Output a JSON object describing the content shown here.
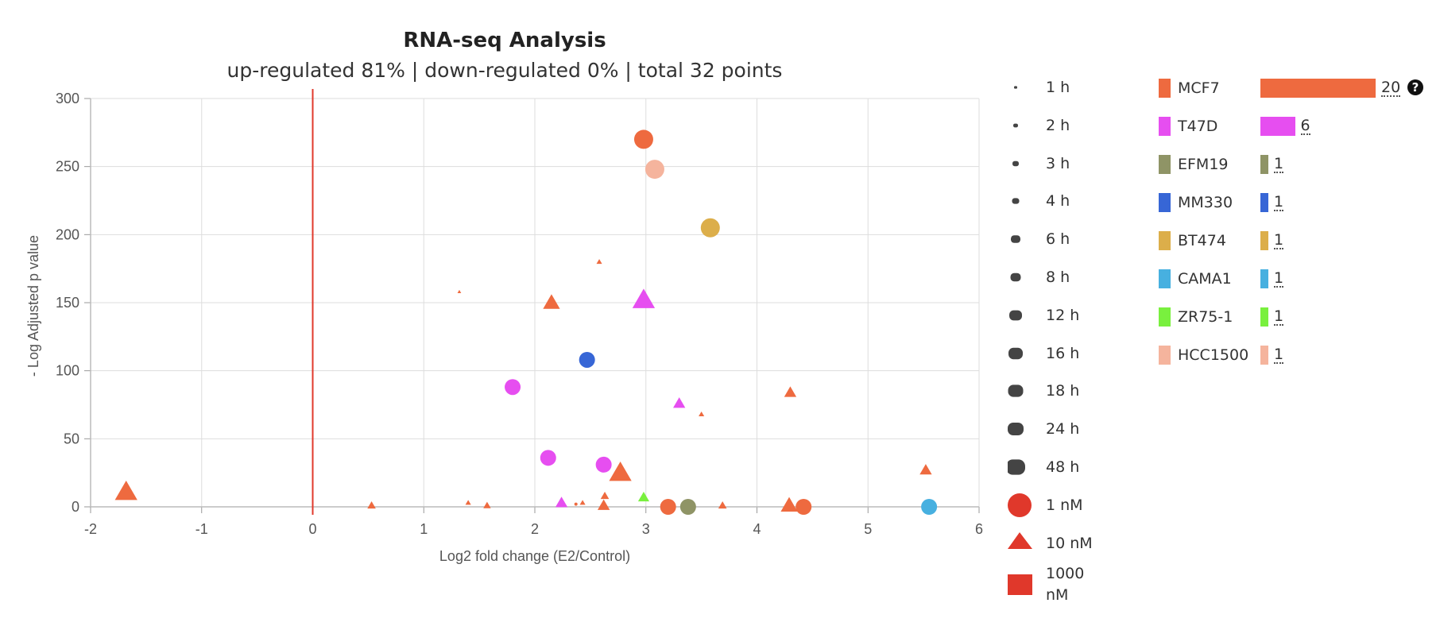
{
  "chart_data": {
    "type": "scatter",
    "title": "RNA-seq Analysis",
    "subtitle": "up-regulated 81% | down-regulated 0% | total 32 points",
    "xlabel": "Log2 fold change (E2/Control)",
    "ylabel": "- Log Adjusted p value",
    "xlim": [
      -2,
      6
    ],
    "ylim": [
      0,
      300
    ],
    "xticks": [
      -2,
      -1,
      0,
      1,
      2,
      3,
      4,
      5,
      6
    ],
    "yticks": [
      0,
      50,
      100,
      150,
      200,
      250,
      300
    ],
    "grid": true,
    "reference_line": {
      "x": 0,
      "color": "#e0382b"
    },
    "colors": {
      "MCF7": "#ee6a3f",
      "T47D": "#e64ef0",
      "EFM19": "#8f9466",
      "MM330": "#3766d6",
      "BT474": "#dcae4a",
      "CAMA1": "#47b0e0",
      "ZR75-1": "#79f03e",
      "HCC1500": "#f5b49d"
    },
    "points": [
      {
        "x": 2.98,
        "y": 270,
        "cell": "MCF7",
        "dose": "1 nM",
        "time": "48 h"
      },
      {
        "x": 3.08,
        "y": 248,
        "cell": "HCC1500",
        "dose": "1 nM",
        "time": "48 h"
      },
      {
        "x": 3.58,
        "y": 205,
        "cell": "BT474",
        "dose": "1 nM",
        "time": "48 h"
      },
      {
        "x": 2.58,
        "y": 180,
        "cell": "MCF7",
        "dose": "10 nM",
        "time": "2 h"
      },
      {
        "x": 1.32,
        "y": 158,
        "cell": "MCF7",
        "dose": "10 nM",
        "time": "1 h"
      },
      {
        "x": 2.15,
        "y": 150,
        "cell": "MCF7",
        "dose": "10 nM",
        "time": "16 h"
      },
      {
        "x": 2.98,
        "y": 152,
        "cell": "T47D",
        "dose": "10 nM",
        "time": "48 h"
      },
      {
        "x": 2.47,
        "y": 108,
        "cell": "MM330",
        "dose": "1 nM",
        "time": "24 h"
      },
      {
        "x": 1.8,
        "y": 88,
        "cell": "T47D",
        "dose": "1 nM",
        "time": "24 h"
      },
      {
        "x": 4.3,
        "y": 84,
        "cell": "MCF7",
        "dose": "10 nM",
        "time": "8 h"
      },
      {
        "x": 3.3,
        "y": 76,
        "cell": "T47D",
        "dose": "10 nM",
        "time": "8 h"
      },
      {
        "x": 3.5,
        "y": 68,
        "cell": "MCF7",
        "dose": "10 nM",
        "time": "2 h"
      },
      {
        "x": 2.12,
        "y": 36,
        "cell": "T47D",
        "dose": "1 nM",
        "time": "24 h"
      },
      {
        "x": 2.62,
        "y": 31,
        "cell": "T47D",
        "dose": "1 nM",
        "time": "24 h"
      },
      {
        "x": 2.77,
        "y": 25,
        "cell": "MCF7",
        "dose": "10 nM",
        "time": "48 h"
      },
      {
        "x": 5.52,
        "y": 27,
        "cell": "MCF7",
        "dose": "10 nM",
        "time": "8 h"
      },
      {
        "x": -1.68,
        "y": 11,
        "cell": "MCF7",
        "dose": "10 nM",
        "time": "48 h"
      },
      {
        "x": 2.98,
        "y": 7,
        "cell": "ZR75-1",
        "dose": "10 nM",
        "time": "6 h"
      },
      {
        "x": 2.63,
        "y": 8,
        "cell": "MCF7",
        "dose": "10 nM",
        "time": "4 h"
      },
      {
        "x": 0.53,
        "y": 1,
        "cell": "MCF7",
        "dose": "10 nM",
        "time": "4 h"
      },
      {
        "x": 1.4,
        "y": 3,
        "cell": "MCF7",
        "dose": "10 nM",
        "time": "2 h"
      },
      {
        "x": 1.57,
        "y": 1,
        "cell": "MCF7",
        "dose": "10 nM",
        "time": "3 h"
      },
      {
        "x": 2.24,
        "y": 3,
        "cell": "T47D",
        "dose": "10 nM",
        "time": "8 h"
      },
      {
        "x": 2.37,
        "y": 2,
        "cell": "MCF7",
        "dose": "1 nM",
        "time": "1 h"
      },
      {
        "x": 2.43,
        "y": 3,
        "cell": "MCF7",
        "dose": "10 nM",
        "time": "2 h"
      },
      {
        "x": 2.62,
        "y": 1,
        "cell": "MCF7",
        "dose": "10 nM",
        "time": "8 h"
      },
      {
        "x": 3.2,
        "y": 0,
        "cell": "MCF7",
        "dose": "1 nM",
        "time": "24 h"
      },
      {
        "x": 3.38,
        "y": 0,
        "cell": "EFM19",
        "dose": "1 nM",
        "time": "24 h"
      },
      {
        "x": 3.69,
        "y": 1,
        "cell": "MCF7",
        "dose": "10 nM",
        "time": "4 h"
      },
      {
        "x": 4.29,
        "y": 1,
        "cell": "MCF7",
        "dose": "10 nM",
        "time": "16 h"
      },
      {
        "x": 4.42,
        "y": 0,
        "cell": "MCF7",
        "dose": "1 nM",
        "time": "24 h"
      },
      {
        "x": 5.55,
        "y": 0,
        "cell": "CAMA1",
        "dose": "1 nM",
        "time": "24 h"
      }
    ]
  },
  "time_legend": {
    "items": [
      {
        "label": "1 h",
        "size": 2
      },
      {
        "label": "2 h",
        "size": 3
      },
      {
        "label": "3 h",
        "size": 4
      },
      {
        "label": "4 h",
        "size": 4.5
      },
      {
        "label": "6 h",
        "size": 6
      },
      {
        "label": "8 h",
        "size": 6.5
      },
      {
        "label": "12 h",
        "size": 8
      },
      {
        "label": "16 h",
        "size": 9
      },
      {
        "label": "18 h",
        "size": 9.5
      },
      {
        "label": "24 h",
        "size": 10
      },
      {
        "label": "48 h",
        "size": 12
      }
    ],
    "color": "#444444"
  },
  "dose_legend": {
    "items": [
      {
        "label": "1 nM",
        "shape": "circle"
      },
      {
        "label": "10 nM",
        "shape": "triangle"
      },
      {
        "label": "1000 nM",
        "shape": "square"
      }
    ],
    "color": "#e0382b"
  },
  "cell_legend": {
    "items": [
      {
        "name": "MCF7",
        "count": "20",
        "color": "#ee6a3f",
        "help": "?"
      },
      {
        "name": "T47D",
        "count": "6",
        "color": "#e64ef0"
      },
      {
        "name": "EFM19",
        "count": "1",
        "color": "#8f9466"
      },
      {
        "name": "MM330",
        "count": "1",
        "color": "#3766d6"
      },
      {
        "name": "BT474",
        "count": "1",
        "color": "#dcae4a"
      },
      {
        "name": "CAMA1",
        "count": "1",
        "color": "#47b0e0"
      },
      {
        "name": "ZR75-1",
        "count": "1",
        "color": "#79f03e"
      },
      {
        "name": "HCC1500",
        "count": "1",
        "color": "#f5b49d"
      }
    ],
    "max_count": 20
  }
}
